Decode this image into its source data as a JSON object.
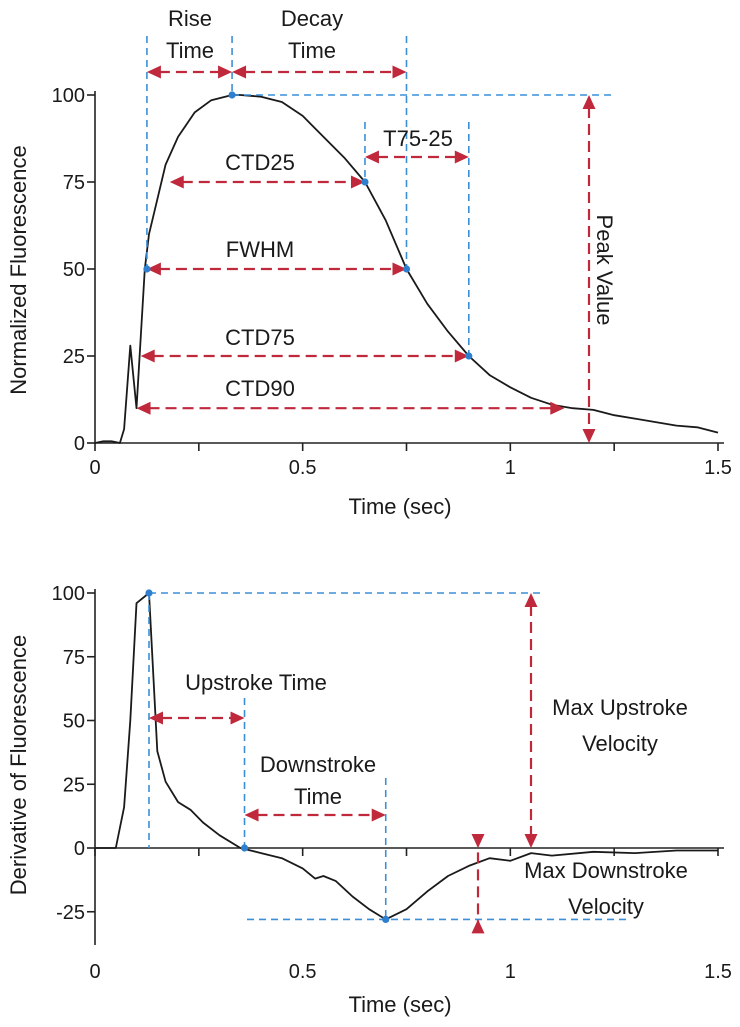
{
  "colors": {
    "trace": "#1a1a1a",
    "guide": "#3b8fd8",
    "arrow": "#c0283c",
    "point": "#2e7fd0"
  },
  "chart_data": [
    {
      "type": "line",
      "title": "",
      "xlabel": "Time (sec)",
      "ylabel": "Normalized Fluorescence",
      "xlim": [
        0,
        1.5
      ],
      "ylim": [
        0,
        100
      ],
      "x_ticks": [
        0,
        0.5,
        1,
        1.5
      ],
      "x_tick_labels": [
        "0",
        "0.5",
        "1",
        "1.5"
      ],
      "y_ticks": [
        0,
        25,
        50,
        75,
        100
      ],
      "y_tick_labels": [
        "0",
        "25",
        "50",
        "75",
        "100"
      ],
      "grid": false,
      "series": [
        {
          "x": [
            0,
            0.02,
            0.04,
            0.06,
            0.07,
            0.085,
            0.1,
            0.12,
            0.13,
            0.15,
            0.17,
            0.2,
            0.24,
            0.28,
            0.33,
            0.35,
            0.4,
            0.45,
            0.5,
            0.55,
            0.6,
            0.65,
            0.7,
            0.75,
            0.8,
            0.85,
            0.9,
            0.95,
            1.0,
            1.05,
            1.1,
            1.15,
            1.2,
            1.25,
            1.3,
            1.35,
            1.4,
            1.45,
            1.5
          ],
          "y": [
            0,
            0.5,
            0.5,
            0,
            4,
            28,
            10,
            50,
            60,
            70,
            80,
            88,
            95,
            98.5,
            100,
            100,
            99.5,
            98,
            94,
            88,
            82,
            75,
            64,
            50,
            40,
            32,
            25,
            19.5,
            16,
            13,
            11,
            10,
            9.5,
            8,
            7,
            6,
            5,
            4.5,
            3
          ]
        }
      ],
      "points": [
        {
          "x": 0.125,
          "y": 50
        },
        {
          "x": 0.33,
          "y": 100
        },
        {
          "x": 0.65,
          "y": 75
        },
        {
          "x": 0.75,
          "y": 50
        },
        {
          "x": 0.9,
          "y": 25
        }
      ],
      "annotations": [
        {
          "text": "CTD25",
          "x1": 0.18,
          "x2": 0.65,
          "y": 75
        },
        {
          "text": "FWHM",
          "x1": 0.125,
          "x2": 0.75,
          "y": 50
        },
        {
          "text": "CTD75",
          "x1": 0.11,
          "x2": 0.9,
          "y": 25
        },
        {
          "text": "CTD90",
          "x1": 0.1,
          "x2": 1.13,
          "y": 10
        },
        {
          "text": "T75-25",
          "x1": 0.65,
          "x2": 0.9,
          "y": 82
        },
        {
          "text_lines": [
            "Rise",
            "Time"
          ],
          "x1": 0.125,
          "x2": 0.33,
          "y": 107
        },
        {
          "text_lines": [
            "Decay",
            "Time"
          ],
          "x1": 0.33,
          "x2": 0.75,
          "y": 107
        },
        {
          "text": "Peak Value",
          "x": 1.18,
          "y1": 0,
          "y2": 100,
          "orientation": "vertical"
        }
      ]
    },
    {
      "type": "line",
      "title": "",
      "xlabel": "Time (sec)",
      "ylabel": "Derivative of Fluorescence",
      "xlim": [
        0,
        1.5
      ],
      "ylim": [
        -30,
        100
      ],
      "x_ticks": [
        0,
        0.5,
        1,
        1.5
      ],
      "x_tick_labels": [
        "0",
        "0.5",
        "1",
        "1.5"
      ],
      "y_ticks": [
        -25,
        0,
        25,
        50,
        75,
        100
      ],
      "y_tick_labels": [
        "-25",
        "0",
        "25",
        "50",
        "75",
        "100"
      ],
      "grid": false,
      "series": [
        {
          "x": [
            0,
            0.03,
            0.05,
            0.07,
            0.085,
            0.1,
            0.13,
            0.15,
            0.17,
            0.2,
            0.23,
            0.26,
            0.3,
            0.35,
            0.4,
            0.45,
            0.5,
            0.53,
            0.55,
            0.58,
            0.62,
            0.66,
            0.7,
            0.75,
            0.8,
            0.85,
            0.9,
            0.95,
            1.0,
            1.05,
            1.1,
            1.2,
            1.3,
            1.4,
            1.5
          ],
          "y": [
            0,
            0,
            0,
            16,
            50,
            96,
            100,
            38,
            26,
            18,
            15,
            10,
            5,
            0,
            -2,
            -4,
            -8,
            -12,
            -11,
            -13,
            -19,
            -24,
            -28,
            -24,
            -17,
            -11,
            -7,
            -4,
            -5,
            -2,
            -3,
            -1.5,
            -2,
            -1,
            -1
          ]
        }
      ],
      "points": [
        {
          "x": 0.13,
          "y": 100
        },
        {
          "x": 0.36,
          "y": 0
        },
        {
          "x": 0.7,
          "y": -28
        }
      ],
      "annotations": [
        {
          "text": "Upstroke Time",
          "x1": 0.13,
          "x2": 0.36,
          "y": 50
        },
        {
          "text_lines": [
            "Downstroke",
            "Time"
          ],
          "x1": 0.36,
          "x2": 0.7,
          "y": 13
        },
        {
          "text_lines": [
            "Max Upstroke",
            "Velocity"
          ],
          "x": 1.04,
          "y1": 0,
          "y2": 100,
          "orientation": "vertical"
        },
        {
          "text_lines": [
            "Max Downstroke",
            "Velocity"
          ],
          "x": 0.92,
          "y1": -28,
          "y2": 0,
          "orientation": "vertical"
        }
      ]
    }
  ]
}
